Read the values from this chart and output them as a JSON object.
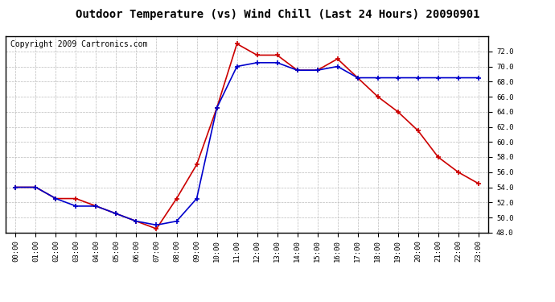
{
  "title": "Outdoor Temperature (vs) Wind Chill (Last 24 Hours) 20090901",
  "copyright": "Copyright 2009 Cartronics.com",
  "hours": [
    "00:00",
    "01:00",
    "02:00",
    "03:00",
    "04:00",
    "05:00",
    "06:00",
    "07:00",
    "08:00",
    "09:00",
    "10:00",
    "11:00",
    "12:00",
    "13:00",
    "14:00",
    "15:00",
    "16:00",
    "17:00",
    "18:00",
    "19:00",
    "20:00",
    "21:00",
    "22:00",
    "23:00"
  ],
  "temp": [
    54.0,
    54.0,
    52.5,
    52.5,
    51.5,
    50.5,
    49.5,
    48.5,
    52.5,
    57.0,
    64.5,
    73.0,
    71.5,
    71.5,
    69.5,
    69.5,
    71.0,
    68.5,
    66.0,
    64.0,
    61.5,
    58.0,
    56.0,
    54.5
  ],
  "windchill": [
    54.0,
    54.0,
    52.5,
    51.5,
    51.5,
    50.5,
    49.5,
    49.0,
    49.5,
    52.5,
    64.5,
    70.0,
    70.5,
    70.5,
    69.5,
    69.5,
    70.0,
    68.5,
    68.5,
    68.5,
    68.5,
    68.5,
    68.5,
    68.5
  ],
  "temp_color": "#cc0000",
  "windchill_color": "#0000cc",
  "bg_color": "#ffffff",
  "grid_color": "#bbbbbb",
  "ylim": [
    48.0,
    74.0
  ],
  "yticks": [
    48.0,
    50.0,
    52.0,
    54.0,
    56.0,
    58.0,
    60.0,
    62.0,
    64.0,
    66.0,
    68.0,
    70.0,
    72.0
  ],
  "title_fontsize": 10,
  "copyright_fontsize": 7,
  "marker": "+",
  "marker_size": 5,
  "line_width": 1.2,
  "border_color": "#000000",
  "fig_width": 6.9,
  "fig_height": 3.75,
  "dpi": 100
}
